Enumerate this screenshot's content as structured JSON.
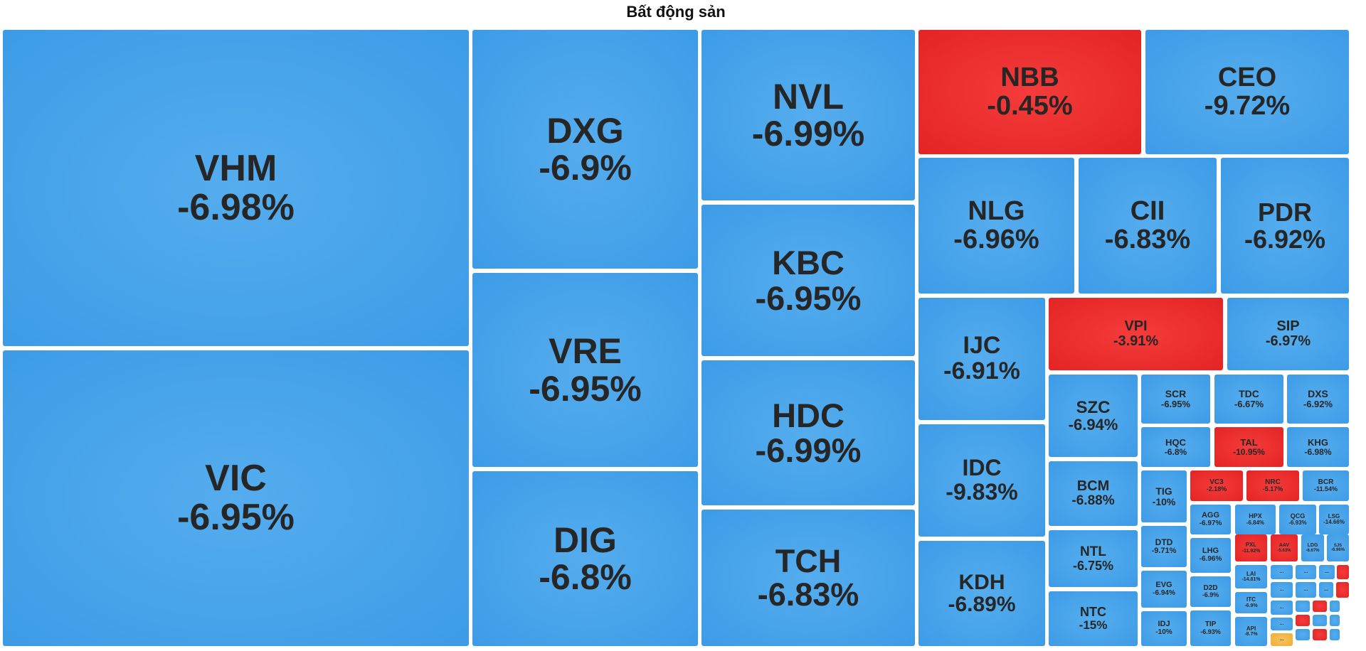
{
  "chart_data": {
    "type": "treemap",
    "title": "Bất động sản",
    "colors": {
      "negative": "#3d9be6",
      "positive_red": "#e32424",
      "neutral": "#eeae34"
    },
    "tiles": [
      {
        "label": "VHM",
        "change": "-6.98%",
        "color": "blue"
      },
      {
        "label": "VIC",
        "change": "-6.95%",
        "color": "blue"
      },
      {
        "label": "DXG",
        "change": "-6.9%",
        "color": "blue"
      },
      {
        "label": "VRE",
        "change": "-6.95%",
        "color": "blue"
      },
      {
        "label": "DIG",
        "change": "-6.8%",
        "color": "blue"
      },
      {
        "label": "NVL",
        "change": "-6.99%",
        "color": "blue"
      },
      {
        "label": "KBC",
        "change": "-6.95%",
        "color": "blue"
      },
      {
        "label": "HDC",
        "change": "-6.99%",
        "color": "blue"
      },
      {
        "label": "TCH",
        "change": "-6.83%",
        "color": "blue"
      },
      {
        "label": "NBB",
        "change": "-0.45%",
        "color": "red"
      },
      {
        "label": "CEO",
        "change": "-9.72%",
        "color": "blue"
      },
      {
        "label": "NLG",
        "change": "-6.96%",
        "color": "blue"
      },
      {
        "label": "CII",
        "change": "-6.83%",
        "color": "blue"
      },
      {
        "label": "PDR",
        "change": "-6.92%",
        "color": "blue"
      },
      {
        "label": "IJC",
        "change": "-6.91%",
        "color": "blue"
      },
      {
        "label": "VPI",
        "change": "-3.91%",
        "color": "red"
      },
      {
        "label": "SIP",
        "change": "-6.97%",
        "color": "blue"
      },
      {
        "label": "IDC",
        "change": "-9.83%",
        "color": "blue"
      },
      {
        "label": "KDH",
        "change": "-6.89%",
        "color": "blue"
      },
      {
        "label": "SZC",
        "change": "-6.94%",
        "color": "blue"
      },
      {
        "label": "BCM",
        "change": "-6.88%",
        "color": "blue"
      },
      {
        "label": "NTL",
        "change": "-6.75%",
        "color": "blue"
      },
      {
        "label": "NTC",
        "change": "-15%",
        "color": "blue"
      },
      {
        "label": "SCR",
        "change": "-6.95%",
        "color": "blue"
      },
      {
        "label": "TDC",
        "change": "-6.67%",
        "color": "blue"
      },
      {
        "label": "DXS",
        "change": "-6.92%",
        "color": "blue"
      },
      {
        "label": "HQC",
        "change": "-6.8%",
        "color": "blue"
      },
      {
        "label": "TAL",
        "change": "-10.95%",
        "color": "red"
      },
      {
        "label": "KHG",
        "change": "-6.98%",
        "color": "blue"
      },
      {
        "label": "TIG",
        "change": "-10%",
        "color": "blue"
      },
      {
        "label": "VC3",
        "change": "-2.18%",
        "color": "red"
      },
      {
        "label": "NRC",
        "change": "-5.17%",
        "color": "red"
      },
      {
        "label": "BCR",
        "change": "-11.54%",
        "color": "blue"
      },
      {
        "label": "AGG",
        "change": "-6.97%",
        "color": "blue"
      },
      {
        "label": "HPX",
        "change": "-6.84%",
        "color": "blue"
      },
      {
        "label": "QCG",
        "change": "-6.93%",
        "color": "blue"
      },
      {
        "label": "LSG",
        "change": "-14.66%",
        "color": "blue"
      },
      {
        "label": "DTD",
        "change": "-9.71%",
        "color": "blue"
      },
      {
        "label": "LHG",
        "change": "-6.96%",
        "color": "blue"
      },
      {
        "label": "PXL",
        "change": "-11.92%",
        "color": "red"
      },
      {
        "label": "AAV",
        "change": "-5.63%",
        "color": "red"
      },
      {
        "label": "LDG",
        "change": "-6.67%",
        "color": "blue"
      },
      {
        "label": "SJS",
        "change": "-6.96%",
        "color": "blue"
      },
      {
        "label": "EVG",
        "change": "-6.94%",
        "color": "blue"
      },
      {
        "label": "D2D",
        "change": "-6.9%",
        "color": "blue"
      },
      {
        "label": "LAI",
        "change": "-14.81%",
        "color": "blue"
      },
      {
        "label": "IDJ",
        "change": "-10%",
        "color": "blue"
      },
      {
        "label": "TIP",
        "change": "-6.93%",
        "color": "blue"
      },
      {
        "label": "ITC",
        "change": "-6.9%",
        "color": "blue"
      },
      {
        "label": "API",
        "change": "-8.7%",
        "color": "blue"
      },
      {
        "label": "...",
        "change": "",
        "color": "blue"
      },
      {
        "label": "...",
        "change": "",
        "color": "blue"
      },
      {
        "label": "...",
        "change": "",
        "color": "blue"
      },
      {
        "label": "",
        "change": "",
        "color": "red"
      },
      {
        "label": "...",
        "change": "",
        "color": "blue"
      },
      {
        "label": "...",
        "change": "",
        "color": "blue"
      },
      {
        "label": "...",
        "change": "",
        "color": "blue"
      },
      {
        "label": "",
        "change": "",
        "color": "red"
      },
      {
        "label": "...",
        "change": "",
        "color": "blue"
      },
      {
        "label": "",
        "change": "",
        "color": "blue"
      },
      {
        "label": "",
        "change": "",
        "color": "red"
      },
      {
        "label": "",
        "change": "",
        "color": "blue"
      },
      {
        "label": "...",
        "change": "",
        "color": "blue"
      },
      {
        "label": "",
        "change": "",
        "color": "red"
      },
      {
        "label": "",
        "change": "",
        "color": "blue"
      },
      {
        "label": "",
        "change": "",
        "color": "blue"
      },
      {
        "label": "...",
        "change": "",
        "color": "yellow"
      },
      {
        "label": "",
        "change": "",
        "color": "blue"
      },
      {
        "label": "",
        "change": "",
        "color": "red"
      },
      {
        "label": "",
        "change": "",
        "color": "blue"
      }
    ]
  }
}
